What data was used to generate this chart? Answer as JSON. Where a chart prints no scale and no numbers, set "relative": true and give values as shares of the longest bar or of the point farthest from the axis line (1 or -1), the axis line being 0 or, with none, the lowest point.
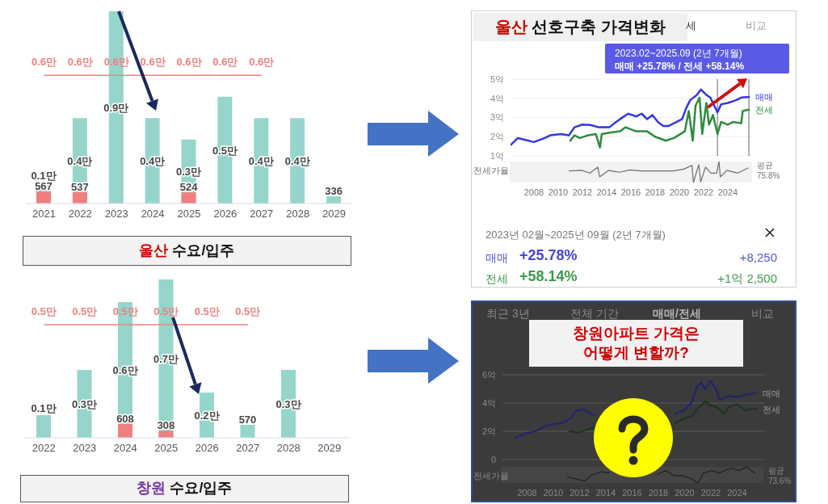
{
  "chart_data": [
    {
      "type": "bar",
      "title": "울산 수요/입주",
      "categories": [
        "2021",
        "2022",
        "2023",
        "2024",
        "2025",
        "2026",
        "2027",
        "2028",
        "2029"
      ],
      "tick_labels": "x",
      "ylim": [
        0,
        0.9
      ],
      "y2lim": [
        0,
        9000
      ],
      "series": [
        {
          "color": "#96d5cb",
          "values": [
            0.1,
            0.4,
            0.9,
            0.4,
            0.3,
            0.5,
            0.4,
            0.4,
            null
          ],
          "value_labels": [
            "0.1만",
            "0.4만",
            "0.9만",
            "0.4만",
            "0.3만",
            "0.5만",
            "0.4만",
            "0.4만",
            null
          ]
        },
        {
          "axis": "y2",
          "color": "#f08080",
          "values": [
            567,
            537,
            null,
            null,
            524,
            null,
            null,
            null,
            null
          ],
          "value_labels": [
            "567",
            "537",
            null,
            null,
            "524",
            null,
            null,
            null,
            null
          ]
        },
        {
          "axis": "y2",
          "color": "#96d5cb",
          "values": [
            null,
            null,
            null,
            null,
            null,
            null,
            null,
            null,
            336
          ],
          "value_labels": [
            null,
            null,
            null,
            null,
            null,
            null,
            null,
            null,
            "336"
          ]
        },
        {
          "type": "line",
          "color": "#f08080",
          "values": [
            0.6,
            0.6,
            0.6,
            0.6,
            0.6,
            0.6,
            0.6,
            null,
            null
          ],
          "value_labels": [
            "0.6만",
            "0.6만",
            "0.6만",
            "0.6만",
            "0.6만",
            "0.6만",
            "0.6만",
            null,
            null
          ]
        }
      ]
    },
    {
      "type": "bar",
      "title": "창원 수요/입주",
      "categories": [
        "2022",
        "2023",
        "2024",
        "2025",
        "2026",
        "2027",
        "2028",
        "2029"
      ],
      "tick_labels": "x",
      "ylim": [
        0,
        0.7
      ],
      "y2lim": [
        0,
        7000
      ],
      "series": [
        {
          "color": "#96d5cb",
          "values": [
            0.1,
            0.3,
            0.6,
            0.7,
            0.2,
            null,
            0.3,
            null
          ],
          "value_labels": [
            "0.1만",
            "0.3만",
            "0.6만",
            "0.7만",
            "0.2만",
            null,
            "0.3만",
            null
          ]
        },
        {
          "axis": "y2",
          "color": "#f08080",
          "values": [
            null,
            null,
            608,
            308,
            null,
            null,
            null,
            null
          ],
          "value_labels": [
            null,
            null,
            "608",
            "308",
            null,
            null,
            null,
            null
          ]
        },
        {
          "axis": "y2",
          "color": "#96d5cb",
          "values": [
            null,
            null,
            null,
            null,
            null,
            570,
            null,
            null
          ],
          "value_labels": [
            null,
            null,
            null,
            null,
            null,
            "570",
            null,
            null
          ]
        },
        {
          "type": "line",
          "color": "#f08080",
          "values": [
            0.5,
            0.5,
            0.5,
            0.5,
            0.5,
            0.5,
            null,
            null
          ],
          "value_labels": [
            "0.5만",
            "0.5만",
            "0.5만",
            "0.5만",
            "0.5만",
            "0.5만",
            null,
            null
          ]
        }
      ]
    },
    {
      "type": "line",
      "title": "울산 선호구축 가격변화",
      "xlim": [
        2006,
        2026
      ],
      "ylim": [
        1,
        5
      ],
      "yticks": [
        {
          "value": 1,
          "label": "1억"
        },
        {
          "value": 2,
          "label": "2억"
        },
        {
          "value": 3,
          "label": "3억"
        },
        {
          "value": 4,
          "label": "4억"
        },
        {
          "value": 5,
          "label": "5억"
        }
      ],
      "tick_labels": "y",
      "grid": "y",
      "series": [
        {
          "name": "매매",
          "color": "#3535e6",
          "x": [
            2006.04,
            2006.6,
            2007.04,
            2007.93,
            2008.82,
            2009.27,
            2010.16,
            2010.82,
            2011.27,
            2011.93,
            2012.6,
            2013.27,
            2014.16,
            2014.71,
            2015.04,
            2015.71,
            2016.38,
            2016.82,
            2017.27,
            2017.71,
            2018.16,
            2018.6,
            2019.04,
            2019.49,
            2020.16,
            2020.49,
            2020.82,
            2021.38,
            2021.71,
            2022.16,
            2022.49,
            2023.08,
            2023.38,
            2023.93,
            2024.6,
            2025.04,
            2025.67
          ],
          "values": [
            1.58,
            1.93,
            1.86,
            1.72,
            1.93,
            2.07,
            2.14,
            2.07,
            2.49,
            2.63,
            2.61,
            2.49,
            2.49,
            2.77,
            2.92,
            3.2,
            3.06,
            3.2,
            2.92,
            3.13,
            2.77,
            2.56,
            2.56,
            2.7,
            2.92,
            3.48,
            3.9,
            4.18,
            4.46,
            4.18,
            4.04,
            3.27,
            3.69,
            3.76,
            3.9,
            4.04,
            4.07
          ]
        },
        {
          "name": "전세",
          "color": "#2e8b3e",
          "x": [
            2010.93,
            2011.27,
            2011.71,
            2012.38,
            2013.04,
            2013.38,
            2013.53,
            2014.16,
            2015.04,
            2015.49,
            2016.38,
            2017.27,
            2017.93,
            2018.82,
            2019.49,
            2020.38,
            2020.71,
            2021.04,
            2021.27,
            2021.6,
            2021.82,
            2022.16,
            2022.38,
            2022.71,
            2023.08,
            2023.38,
            2023.93,
            2024.38,
            2025.04,
            2025.16,
            2025.67
          ],
          "values": [
            1.79,
            2.07,
            1.93,
            2.07,
            2.14,
            1.44,
            2.14,
            2.21,
            2.28,
            2.49,
            2.28,
            2.28,
            2.0,
            1.79,
            1.93,
            2.28,
            3.34,
            1.79,
            3.62,
            4.04,
            2.14,
            3.76,
            2.63,
            3.13,
            2.14,
            2.77,
            2.63,
            2.77,
            2.7,
            3.34,
            3.41
          ]
        }
      ],
      "ref_lines": [
        {
          "axis": "x",
          "value": 2023.08,
          "color": "#999999"
        },
        {
          "axis": "x",
          "value": 2025.67,
          "color": "#999999"
        }
      ],
      "annotations": [
        "세",
        "비교",
        "2023.02~2025.09 (2년 7개월)",
        {
          "text": "매매 +25.78%  /  전세 +58.14%",
          "x": 2025.6,
          "y": 5
        },
        "2023년 02월~2025년 09월 (2년 7개월)",
        "매매",
        "+25.78%",
        "+8,250",
        "전세",
        "+58.14%",
        "+1억 2,500"
      ]
    },
    {
      "type": "line",
      "ylabel": "전세가율",
      "relative": true,
      "xlim": [
        2006,
        2026
      ],
      "xticks": [
        2008,
        2010,
        2012,
        2014,
        2016,
        2018,
        2020,
        2022,
        2024
      ],
      "tick_labels": "x",
      "series": [
        {
          "color": "#6e6e6e",
          "x": [
            2010.93,
            2011.93,
            2012.6,
            2013.27,
            2013.42,
            2014.16,
            2015.04,
            2015.93,
            2016.82,
            2018.16,
            2019.49,
            2020.38,
            2021.04,
            2021.16,
            2021.6,
            2021.76,
            2022.16,
            2022.6,
            2023.08,
            2023.27,
            2023.38,
            2023.93,
            2024.82,
            2025.67
          ],
          "values": [
            0.55,
            0.58,
            0.45,
            0.73,
            0.27,
            0.58,
            0.49,
            0.6,
            0.55,
            0.55,
            0.55,
            0.64,
            0.82,
            0,
            0.85,
            0.04,
            0.73,
            0.45,
            0.45,
            1,
            0.27,
            0.58,
            0.45,
            0.69
          ]
        }
      ],
      "annotations": [
        "평균 75.8%"
      ]
    },
    {
      "type": "line",
      "title": "창원아파트 가격은 어떻게 변할까?",
      "xlim": [
        2006,
        2026
      ],
      "ylim": [
        0,
        6
      ],
      "yticks": [
        0,
        {
          "value": 2,
          "label": "2억"
        },
        {
          "value": 4,
          "label": "4억"
        },
        {
          "value": 6,
          "label": "6억"
        }
      ],
      "tick_labels": "y",
      "grid": "y",
      "series": [
        {
          "name": "매매",
          "color": "#22226e",
          "x": [
            2006.97,
            2007.69,
            2008.51,
            2009.13,
            2009.74,
            2010.56,
            2011.18,
            2011.59,
            2012.21,
            2012.62,
            2013.03,
            2016.0,
            2019.18,
            2019.79,
            2020.41,
            2020.82,
            2021.13,
            2021.44,
            2021.85,
            2022.26,
            2022.56,
            2023.28,
            2023.9,
            2024.51,
            2025.33
          ],
          "values": [
            1.53,
            1.82,
            2.01,
            2.3,
            2.49,
            2.59,
            2.88,
            3.45,
            3.55,
            3.26,
            3.16,
            null,
            3.26,
            3.45,
            4.03,
            5.18,
            5.46,
            4.98,
            5.56,
            4.98,
            4.22,
            4.5,
            4.41,
            4.6,
            4.7
          ]
        },
        {
          "name": "전세",
          "color": "#1c331f",
          "x": [
            2011.08,
            2011.79,
            2012.41,
            2013.03,
            2016.0,
            2019.18,
            2019.79,
            2020.41,
            2020.92,
            2021.44,
            2021.85,
            2022.26,
            2022.87,
            2023.28,
            2023.9,
            2024.51,
            2025.03,
            2025.33
          ],
          "values": [
            2.01,
            1.92,
            2.11,
            2.3,
            null,
            2.59,
            2.88,
            3.07,
            3.64,
            4.12,
            3.83,
            3.74,
            3.26,
            3.74,
            3.93,
            3.45,
            3.64,
            3.55
          ]
        }
      ],
      "annotations": [
        "최근 3년",
        "전체 기간",
        "매매/전세",
        "비교"
      ]
    },
    {
      "type": "line",
      "ylabel": "전세가율",
      "relative": true,
      "xlim": [
        2006,
        2026
      ],
      "xticks": [
        2008,
        2010,
        2012,
        2014,
        2016,
        2018,
        2020,
        2022,
        2024
      ],
      "tick_labels": "x",
      "series": [
        {
          "color": "#202020",
          "x": [
            2011.08,
            2011.79,
            2012.41,
            2012.82,
            2013.64,
            2014.26,
            2016.0,
            2017.95,
            2018.56,
            2019.18,
            2019.79,
            2020.41,
            2021.03,
            2021.44,
            2022.05,
            2022.67,
            2023.28,
            2023.69,
            2024.1,
            2024.72,
            2025.33
          ],
          "values": [
            0.38,
            0.23,
            0.12,
            0.46,
            0.69,
            0.62,
            null,
            0.54,
            0.77,
            0.46,
            0.46,
            0.31,
            0,
            0.62,
            0.77,
            0.62,
            0.85,
            0.92,
            0.77,
            1,
            0.62
          ]
        }
      ],
      "annotations": [
        "평균 73.6%"
      ]
    }
  ]
}
